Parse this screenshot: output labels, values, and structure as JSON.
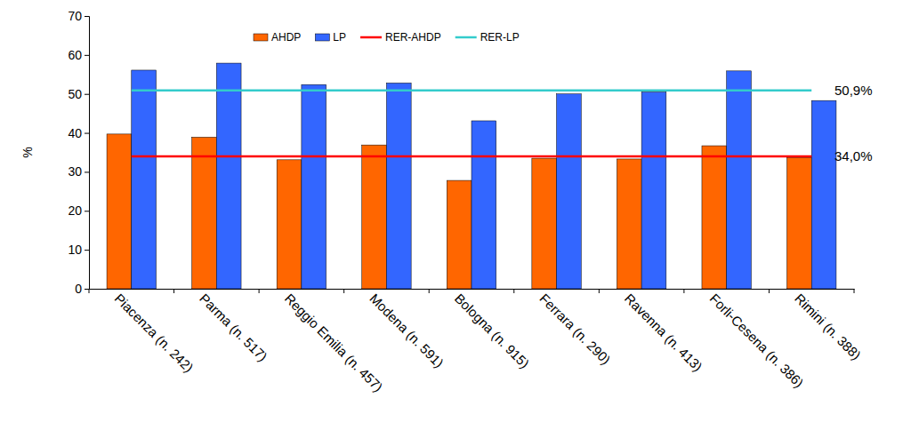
{
  "chart_data": {
    "type": "bar",
    "ylabel": "%",
    "categories": [
      "Piacenza (n. 242)",
      "Parma (n. 517)",
      "Reggio Emilia (n. 457)",
      "Modena (n. 591)",
      "Bologna (n. 915)",
      "Ferrara (n. 290)",
      "Ravenna (n. 413)",
      "Forli-Cesena (n. 386)",
      "Rimini (n. 388)"
    ],
    "series": [
      {
        "name": "AHDP",
        "type": "bar",
        "color": "#ff6600",
        "values": [
          39.7,
          38.9,
          33.1,
          36.9,
          27.8,
          33.5,
          33.3,
          36.7,
          33.7
        ]
      },
      {
        "name": "LP",
        "type": "bar",
        "color": "#3366ff",
        "values": [
          56.1,
          57.9,
          52.4,
          52.8,
          43.1,
          50.0,
          50.5,
          55.9,
          48.3
        ]
      },
      {
        "name": "RER-AHDP",
        "type": "line",
        "color": "#ff0000",
        "values": [
          34.0,
          34.0,
          34.0,
          34.0,
          34.0,
          34.0,
          34.0,
          34.0,
          34.0
        ]
      },
      {
        "name": "RER-LP",
        "type": "line",
        "color": "#33cccc",
        "values": [
          50.9,
          50.9,
          50.9,
          50.9,
          50.9,
          50.9,
          50.9,
          50.9,
          50.9
        ]
      }
    ],
    "annotations": [
      {
        "text": "50,9%",
        "y": 50.9
      },
      {
        "text": "34,0%",
        "y": 34.0
      }
    ],
    "ylim": [
      0,
      70
    ],
    "yticks": [
      0,
      10,
      20,
      30,
      40,
      50,
      60,
      70
    ],
    "legend": "top"
  }
}
